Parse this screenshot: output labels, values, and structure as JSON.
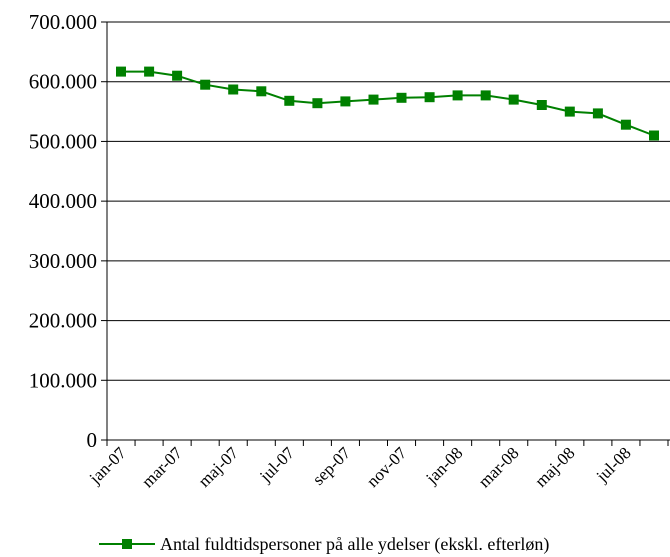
{
  "chart_data": {
    "type": "line",
    "title": "",
    "xlabel": "",
    "ylabel": "",
    "ylim": [
      0,
      700000
    ],
    "grid": true,
    "legend_position": "bottom",
    "y_ticks": [
      "0",
      "100.000",
      "200.000",
      "300.000",
      "400.000",
      "500.000",
      "600.000",
      "700.000"
    ],
    "x_ticks": [
      "jan-07",
      "mar-07",
      "maj-07",
      "jul-07",
      "sep-07",
      "nov-07",
      "jan-08",
      "mar-08",
      "maj-08",
      "jul-08"
    ],
    "categories": [
      "jan-07",
      "feb-07",
      "mar-07",
      "apr-07",
      "maj-07",
      "jun-07",
      "jul-07",
      "aug-07",
      "sep-07",
      "okt-07",
      "nov-07",
      "dec-07",
      "jan-08",
      "feb-08",
      "mar-08",
      "apr-08",
      "maj-08",
      "jun-08",
      "jul-08",
      "aug-08"
    ],
    "series": [
      {
        "name": "Antal fuldtidspersoner på alle ydelser (ekskl. efterløn)",
        "color": "#008000",
        "values": [
          617000,
          617000,
          610000,
          595000,
          587000,
          584000,
          568000,
          564000,
          567000,
          570000,
          573000,
          574000,
          577000,
          577000,
          570000,
          561000,
          550000,
          547000,
          528000,
          510000
        ]
      }
    ]
  }
}
